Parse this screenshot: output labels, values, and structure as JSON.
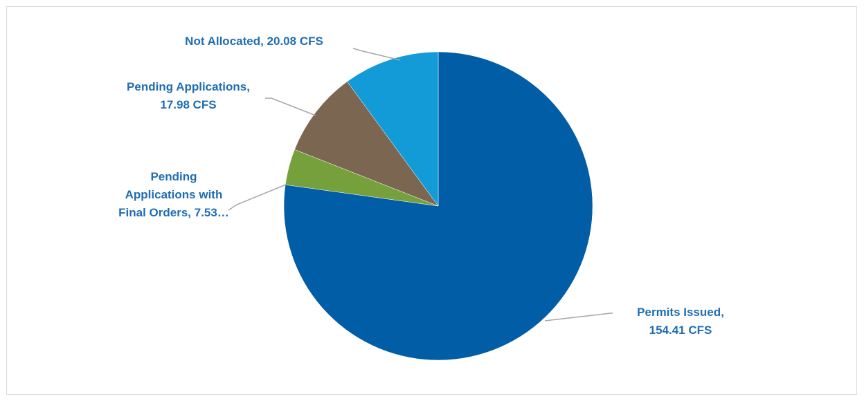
{
  "chart_data": {
    "type": "pie",
    "start_angle_deg": 0,
    "direction": "clockwise",
    "slices": [
      {
        "name": "Permits Issued",
        "value": 154.41,
        "unit": "CFS",
        "color": "#005da6",
        "label_lines": [
          "Permits Issued,",
          "154.41 CFS"
        ]
      },
      {
        "name": "Pending Applications with Final Orders",
        "value": 7.53,
        "unit": "CFS",
        "color": "#76a03c",
        "label_lines": [
          "Pending",
          "Applications with",
          "Final Orders, 7.53…"
        ]
      },
      {
        "name": "Pending Applications",
        "value": 17.98,
        "unit": "CFS",
        "color": "#7b6651",
        "label_lines": [
          "Pending Applications,",
          "17.98 CFS"
        ]
      },
      {
        "name": "Not Allocated",
        "value": 20.08,
        "unit": "CFS",
        "color": "#139bd7",
        "label_lines": [
          "Not Allocated, 20.08 CFS"
        ]
      }
    ],
    "legend": "none",
    "leader_line_color": "#a6a6a6"
  }
}
